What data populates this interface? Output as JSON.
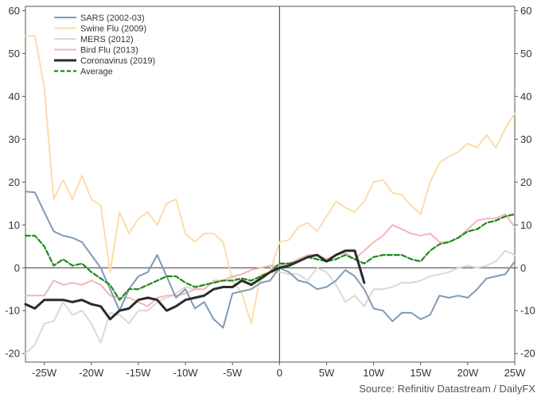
{
  "chart_data": {
    "type": "line",
    "title": "",
    "xlabel": "",
    "ylabel": "",
    "xlim": [
      -27,
      25
    ],
    "ylim": [
      -22,
      61
    ],
    "x_ticks": [
      -25,
      -20,
      -15,
      -10,
      -5,
      0,
      5,
      10,
      15,
      20,
      25
    ],
    "x_tick_labels": [
      "-25W",
      "-20W",
      "-15W",
      "-10W",
      "-5W",
      "0",
      "5W",
      "10W",
      "15W",
      "20W",
      "25W"
    ],
    "y_ticks": [
      -20,
      -10,
      0,
      10,
      20,
      30,
      40,
      50,
      60
    ],
    "y_tick_labels": [
      "-20",
      "-10",
      "0",
      "10",
      "20",
      "30",
      "40",
      "50",
      "60"
    ],
    "legend_position": "top-left",
    "source": "Source: Refinitiv Datastream / DailyFX",
    "series": [
      {
        "name": "SARS (2002-03)",
        "color": "#7f9ab5",
        "style": "solid",
        "points": [
          [
            -27,
            17.8
          ],
          [
            -26,
            17.6
          ],
          [
            -25,
            13
          ],
          [
            -24,
            8.5
          ],
          [
            -23,
            7.5
          ],
          [
            -22,
            7
          ],
          [
            -21,
            6
          ],
          [
            -20,
            3
          ],
          [
            -19,
            0
          ],
          [
            -18,
            -5
          ],
          [
            -17,
            -10
          ],
          [
            -16,
            -5
          ],
          [
            -15,
            -2
          ],
          [
            -14,
            -1
          ],
          [
            -13,
            3
          ],
          [
            -12,
            -2
          ],
          [
            -11,
            -7
          ],
          [
            -10,
            -5
          ],
          [
            -9,
            -9.5
          ],
          [
            -8,
            -8
          ],
          [
            -7,
            -12
          ],
          [
            -6,
            -14
          ],
          [
            -5,
            -6
          ],
          [
            -4,
            -5.5
          ],
          [
            -3,
            -5
          ],
          [
            -2,
            -3.5
          ],
          [
            -1,
            -3
          ],
          [
            0,
            0
          ],
          [
            1,
            -1
          ],
          [
            2,
            -3
          ],
          [
            3,
            -3.5
          ],
          [
            4,
            -5
          ],
          [
            5,
            -4.5
          ],
          [
            6,
            -3
          ],
          [
            7,
            -0.5
          ],
          [
            8,
            -2
          ],
          [
            9,
            -5
          ],
          [
            10,
            -9.5
          ],
          [
            11,
            -10
          ],
          [
            12,
            -12.5
          ],
          [
            13,
            -10.5
          ],
          [
            14,
            -10.5
          ],
          [
            15,
            -12
          ],
          [
            16,
            -11
          ],
          [
            17,
            -6.5
          ],
          [
            18,
            -7
          ],
          [
            19,
            -6.5
          ],
          [
            20,
            -7
          ],
          [
            21,
            -5
          ],
          [
            22,
            -2.5
          ],
          [
            23,
            -2
          ],
          [
            24,
            -1.5
          ],
          [
            25,
            1.5
          ]
        ]
      },
      {
        "name": "Swine Flu (2009)",
        "color": "#fddcaa",
        "style": "solid",
        "points": [
          [
            -27,
            54
          ],
          [
            -26,
            54.2
          ],
          [
            -25,
            42
          ],
          [
            -24,
            16
          ],
          [
            -23,
            20.5
          ],
          [
            -22,
            16
          ],
          [
            -21,
            21.5
          ],
          [
            -20,
            16
          ],
          [
            -19,
            14.5
          ],
          [
            -18,
            -1
          ],
          [
            -17,
            13
          ],
          [
            -16,
            8
          ],
          [
            -15,
            11.5
          ],
          [
            -14,
            13
          ],
          [
            -13,
            10
          ],
          [
            -12,
            15
          ],
          [
            -11,
            16
          ],
          [
            -10,
            8
          ],
          [
            -9,
            6
          ],
          [
            -8,
            8
          ],
          [
            -7,
            8
          ],
          [
            -6,
            6
          ],
          [
            -5,
            -3
          ],
          [
            -4,
            -6
          ],
          [
            -3,
            -13
          ],
          [
            -2,
            -1.5
          ],
          [
            -1,
            -1
          ],
          [
            0,
            6
          ],
          [
            1,
            6.5
          ],
          [
            2,
            9.5
          ],
          [
            3,
            10.5
          ],
          [
            4,
            8.5
          ],
          [
            5,
            12
          ],
          [
            6,
            15.5
          ],
          [
            7,
            14
          ],
          [
            8,
            13
          ],
          [
            9,
            15.5
          ],
          [
            10,
            20
          ],
          [
            11,
            20.5
          ],
          [
            12,
            17.5
          ],
          [
            13,
            17
          ],
          [
            14,
            14.5
          ],
          [
            15,
            12.5
          ],
          [
            16,
            20
          ],
          [
            17,
            24.5
          ],
          [
            18,
            26
          ],
          [
            19,
            27
          ],
          [
            20,
            29
          ],
          [
            21,
            28
          ],
          [
            22,
            31
          ],
          [
            23,
            28
          ],
          [
            24,
            32.5
          ],
          [
            25,
            36
          ]
        ]
      },
      {
        "name": "MERS (2012)",
        "color": "#d9d9d9",
        "style": "solid",
        "points": [
          [
            -27,
            -20
          ],
          [
            -26,
            -18
          ],
          [
            -25,
            -13
          ],
          [
            -24,
            -12.5
          ],
          [
            -23,
            -8
          ],
          [
            -22,
            -11
          ],
          [
            -21,
            -10
          ],
          [
            -20,
            -13
          ],
          [
            -19,
            -17.5
          ],
          [
            -18,
            -10.5
          ],
          [
            -17,
            -11
          ],
          [
            -16,
            -13
          ],
          [
            -15,
            -10
          ],
          [
            -14,
            -10
          ],
          [
            -13,
            -8
          ],
          [
            -12,
            -7
          ],
          [
            -11,
            -6
          ],
          [
            -10,
            -4.5
          ],
          [
            -9,
            -5
          ],
          [
            -8,
            -4
          ],
          [
            -7,
            -3.5
          ],
          [
            -6,
            -3
          ],
          [
            -5,
            -2
          ],
          [
            -4,
            -3
          ],
          [
            -3,
            -3.5
          ],
          [
            -2,
            -3
          ],
          [
            -1,
            -1
          ],
          [
            0,
            -1
          ],
          [
            1,
            -1.5
          ],
          [
            2,
            -1.5
          ],
          [
            3,
            -3
          ],
          [
            4,
            0
          ],
          [
            5,
            -1
          ],
          [
            6,
            -4
          ],
          [
            7,
            -8
          ],
          [
            8,
            -6.5
          ],
          [
            9,
            -9
          ],
          [
            10,
            -5
          ],
          [
            11,
            -5
          ],
          [
            12,
            -4.5
          ],
          [
            13,
            -3.5
          ],
          [
            14,
            -3.5
          ],
          [
            15,
            -3
          ],
          [
            16,
            -2
          ],
          [
            17,
            -1.5
          ],
          [
            18,
            -1
          ],
          [
            19,
            0
          ],
          [
            20,
            0.5
          ],
          [
            21,
            0
          ],
          [
            22,
            0.5
          ],
          [
            23,
            1.5
          ],
          [
            24,
            4
          ],
          [
            25,
            3
          ]
        ]
      },
      {
        "name": "Bird Flu (2013)",
        "color": "#f2b6b9",
        "style": "solid",
        "points": [
          [
            -27,
            -6.5
          ],
          [
            -26,
            -6.5
          ],
          [
            -25,
            -6.5
          ],
          [
            -24,
            -3
          ],
          [
            -23,
            -4
          ],
          [
            -22,
            -3.5
          ],
          [
            -21,
            -4
          ],
          [
            -20,
            -3
          ],
          [
            -19,
            -4
          ],
          [
            -18,
            -6.5
          ],
          [
            -17,
            -7
          ],
          [
            -16,
            -7
          ],
          [
            -15,
            -8
          ],
          [
            -14,
            -9
          ],
          [
            -13,
            -7
          ],
          [
            -12,
            -6.5
          ],
          [
            -11,
            -6.5
          ],
          [
            -10,
            -6
          ],
          [
            -9,
            -5
          ],
          [
            -8,
            -5
          ],
          [
            -7,
            -3
          ],
          [
            -6,
            -3
          ],
          [
            -5,
            -2
          ],
          [
            -4,
            -1.5
          ],
          [
            -3,
            -0.5
          ],
          [
            -2,
            0
          ],
          [
            -1,
            0.5
          ],
          [
            0,
            0.5
          ],
          [
            1,
            1
          ],
          [
            2,
            2
          ],
          [
            3,
            3
          ],
          [
            4,
            3
          ],
          [
            5,
            2
          ],
          [
            6,
            3
          ],
          [
            7,
            3.5
          ],
          [
            8,
            2
          ],
          [
            9,
            4
          ],
          [
            10,
            6
          ],
          [
            11,
            7.5
          ],
          [
            12,
            10
          ],
          [
            13,
            9
          ],
          [
            14,
            8
          ],
          [
            15,
            7.5
          ],
          [
            16,
            8
          ],
          [
            17,
            6
          ],
          [
            18,
            6
          ],
          [
            19,
            7
          ],
          [
            20,
            9
          ],
          [
            21,
            11
          ],
          [
            22,
            11.5
          ],
          [
            23,
            11.5
          ],
          [
            24,
            12.5
          ],
          [
            25,
            9.5
          ]
        ]
      },
      {
        "name": "Coronavirus (2019)",
        "color": "#2b2b2b",
        "style": "solid-bold",
        "points": [
          [
            -27,
            -8.5
          ],
          [
            -26,
            -9.5
          ],
          [
            -25,
            -7.5
          ],
          [
            -24,
            -7.5
          ],
          [
            -23,
            -7.5
          ],
          [
            -22,
            -8
          ],
          [
            -21,
            -7.5
          ],
          [
            -20,
            -8.5
          ],
          [
            -19,
            -9
          ],
          [
            -18,
            -12
          ],
          [
            -17,
            -10
          ],
          [
            -16,
            -9.5
          ],
          [
            -15,
            -7.5
          ],
          [
            -14,
            -7
          ],
          [
            -13,
            -7.5
          ],
          [
            -12,
            -10
          ],
          [
            -11,
            -9
          ],
          [
            -10,
            -7.5
          ],
          [
            -9,
            -7
          ],
          [
            -8,
            -6.5
          ],
          [
            -7,
            -5
          ],
          [
            -6,
            -4.5
          ],
          [
            -5,
            -4.5
          ],
          [
            -4,
            -3
          ],
          [
            -3,
            -4
          ],
          [
            -2,
            -2.5
          ],
          [
            -1,
            -1
          ],
          [
            0,
            0
          ],
          [
            1,
            0.5
          ],
          [
            2,
            1.5
          ],
          [
            3,
            2.5
          ],
          [
            4,
            3
          ],
          [
            5,
            1.5
          ],
          [
            6,
            3
          ],
          [
            7,
            4
          ],
          [
            8,
            4
          ],
          [
            9,
            -3.5
          ]
        ]
      },
      {
        "name": "Average",
        "color": "#1a8a1a",
        "style": "dashed",
        "points": [
          [
            -27,
            7.5
          ],
          [
            -26,
            7.5
          ],
          [
            -25,
            5
          ],
          [
            -24,
            0.5
          ],
          [
            -23,
            2
          ],
          [
            -22,
            0.5
          ],
          [
            -21,
            1
          ],
          [
            -20,
            -1
          ],
          [
            -19,
            -2.5
          ],
          [
            -18,
            -4
          ],
          [
            -17,
            -7.5
          ],
          [
            -16,
            -5
          ],
          [
            -15,
            -5
          ],
          [
            -14,
            -4
          ],
          [
            -13,
            -3
          ],
          [
            -12,
            -2
          ],
          [
            -11,
            -2
          ],
          [
            -10,
            -3.5
          ],
          [
            -9,
            -4.5
          ],
          [
            -8,
            -4
          ],
          [
            -7,
            -3.5
          ],
          [
            -6,
            -3
          ],
          [
            -5,
            -3
          ],
          [
            -4,
            -2.5
          ],
          [
            -3,
            -3
          ],
          [
            -2,
            -2
          ],
          [
            -1,
            -1
          ],
          [
            0,
            1
          ],
          [
            1,
            1
          ],
          [
            2,
            1.5
          ],
          [
            3,
            2.5
          ],
          [
            4,
            2
          ],
          [
            5,
            1.5
          ],
          [
            6,
            2
          ],
          [
            7,
            3
          ],
          [
            8,
            2
          ],
          [
            9,
            1
          ],
          [
            10,
            2.5
          ],
          [
            11,
            3
          ],
          [
            12,
            3
          ],
          [
            13,
            3
          ],
          [
            14,
            2
          ],
          [
            15,
            1.5
          ],
          [
            16,
            4
          ],
          [
            17,
            5.5
          ],
          [
            18,
            6
          ],
          [
            19,
            7
          ],
          [
            20,
            8.5
          ],
          [
            21,
            9
          ],
          [
            22,
            10.5
          ],
          [
            23,
            11
          ],
          [
            24,
            12
          ],
          [
            25,
            12.5
          ]
        ]
      }
    ]
  }
}
